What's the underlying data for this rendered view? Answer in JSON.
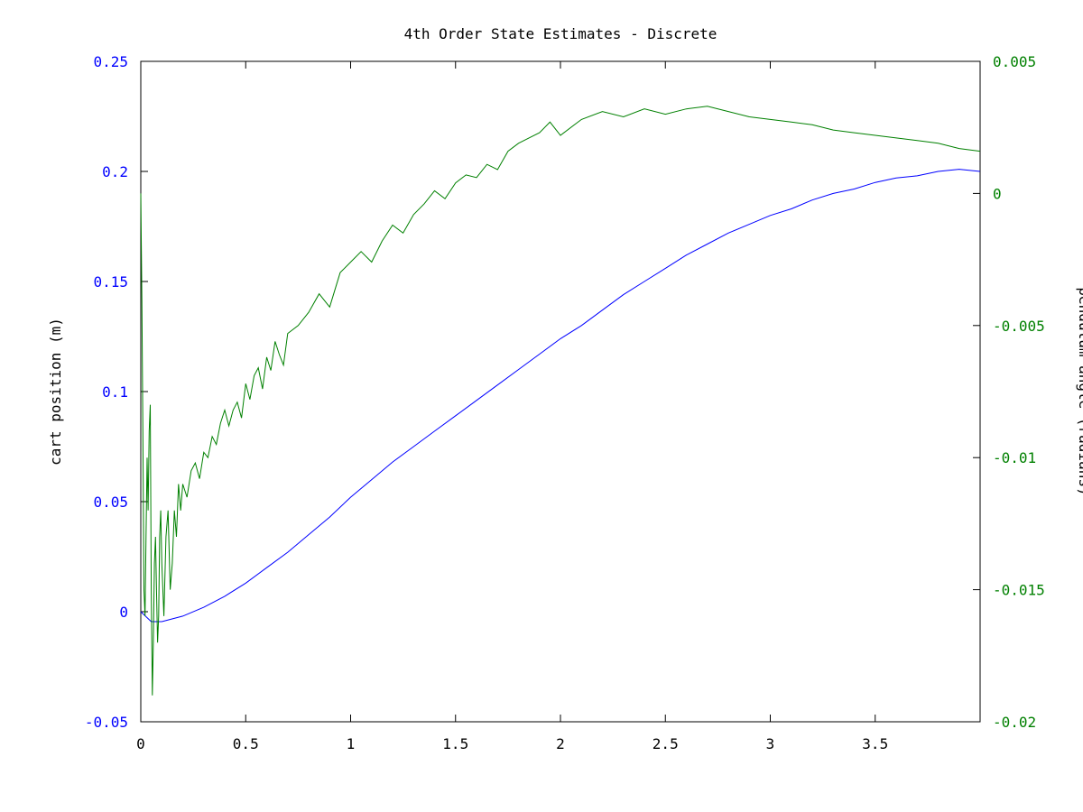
{
  "chart_data": {
    "type": "line",
    "title": "4th Order State Estimates - Discrete",
    "xlabel": "",
    "y1label": "cart position (m)",
    "y2label": "pendulum angle (radians)",
    "xlim": [
      0,
      4
    ],
    "y1lim": [
      -0.05,
      0.25
    ],
    "y2lim": [
      -0.02,
      0.005
    ],
    "grid": false,
    "x_ticks": [
      0,
      0.5,
      1,
      1.5,
      2,
      2.5,
      3,
      3.5
    ],
    "x_tick_labels": [
      "0",
      "0.5",
      "1",
      "1.5",
      "2",
      "2.5",
      "3",
      "3.5"
    ],
    "y1_ticks": [
      -0.05,
      0,
      0.05,
      0.1,
      0.15,
      0.2,
      0.25
    ],
    "y1_tick_labels": [
      "-0.05",
      "0",
      "0.05",
      "0.1",
      "0.15",
      "0.2",
      "0.25"
    ],
    "y2_ticks": [
      -0.02,
      -0.015,
      -0.01,
      -0.005,
      0,
      0.005
    ],
    "y2_tick_labels": [
      "-0.02",
      "-0.015",
      "-0.01",
      "-0.005",
      "0",
      "0.005"
    ],
    "colors": {
      "cart": "#0000ff",
      "pendulum": "#008000",
      "axis": "#000000"
    },
    "series": [
      {
        "axis": "y1",
        "color": "#0000ff",
        "x": [
          0,
          0.05,
          0.1,
          0.2,
          0.3,
          0.4,
          0.5,
          0.6,
          0.7,
          0.8,
          0.9,
          1.0,
          1.1,
          1.2,
          1.3,
          1.4,
          1.5,
          1.6,
          1.7,
          1.8,
          1.9,
          2.0,
          2.1,
          2.2,
          2.3,
          2.4,
          2.5,
          2.6,
          2.7,
          2.8,
          2.9,
          3.0,
          3.1,
          3.2,
          3.3,
          3.4,
          3.5,
          3.6,
          3.7,
          3.8,
          3.9,
          4.0
        ],
        "values": [
          0.0,
          -0.0045,
          -0.0045,
          -0.002,
          0.002,
          0.007,
          0.013,
          0.02,
          0.027,
          0.035,
          0.043,
          0.052,
          0.06,
          0.068,
          0.075,
          0.082,
          0.089,
          0.096,
          0.103,
          0.11,
          0.117,
          0.124,
          0.13,
          0.137,
          0.144,
          0.15,
          0.156,
          0.162,
          0.167,
          0.172,
          0.176,
          0.18,
          0.183,
          0.187,
          0.19,
          0.192,
          0.195,
          0.197,
          0.198,
          0.2,
          0.201,
          0.2
        ]
      },
      {
        "axis": "y2",
        "color": "#008000",
        "x": [
          0,
          0.005,
          0.01,
          0.015,
          0.02,
          0.025,
          0.03,
          0.035,
          0.04,
          0.045,
          0.05,
          0.055,
          0.06,
          0.065,
          0.07,
          0.075,
          0.08,
          0.085,
          0.09,
          0.095,
          0.1,
          0.11,
          0.12,
          0.13,
          0.14,
          0.15,
          0.16,
          0.17,
          0.18,
          0.19,
          0.2,
          0.22,
          0.24,
          0.26,
          0.28,
          0.3,
          0.32,
          0.34,
          0.36,
          0.38,
          0.4,
          0.42,
          0.44,
          0.46,
          0.48,
          0.5,
          0.52,
          0.54,
          0.56,
          0.58,
          0.6,
          0.62,
          0.64,
          0.66,
          0.68,
          0.7,
          0.75,
          0.8,
          0.85,
          0.9,
          0.95,
          1.0,
          1.05,
          1.1,
          1.15,
          1.2,
          1.25,
          1.3,
          1.35,
          1.4,
          1.45,
          1.5,
          1.55,
          1.6,
          1.65,
          1.7,
          1.75,
          1.8,
          1.85,
          1.9,
          1.95,
          2.0,
          2.1,
          2.2,
          2.3,
          2.4,
          2.5,
          2.6,
          2.7,
          2.8,
          2.9,
          3.0,
          3.1,
          3.2,
          3.3,
          3.4,
          3.5,
          3.6,
          3.7,
          3.8,
          3.9,
          4.0
        ],
        "values": [
          0.0,
          -0.004,
          -0.009,
          -0.015,
          -0.016,
          -0.013,
          -0.01,
          -0.012,
          -0.009,
          -0.008,
          -0.015,
          -0.019,
          -0.017,
          -0.014,
          -0.013,
          -0.015,
          -0.017,
          -0.016,
          -0.013,
          -0.012,
          -0.014,
          -0.016,
          -0.013,
          -0.012,
          -0.015,
          -0.014,
          -0.012,
          -0.013,
          -0.011,
          -0.012,
          -0.011,
          -0.0115,
          -0.0105,
          -0.0102,
          -0.0108,
          -0.0098,
          -0.01,
          -0.0092,
          -0.0095,
          -0.0087,
          -0.0082,
          -0.0088,
          -0.0082,
          -0.0079,
          -0.0085,
          -0.0072,
          -0.0078,
          -0.0069,
          -0.0066,
          -0.0074,
          -0.0062,
          -0.0067,
          -0.0056,
          -0.0061,
          -0.0065,
          -0.0053,
          -0.005,
          -0.0045,
          -0.0038,
          -0.0043,
          -0.003,
          -0.0026,
          -0.0022,
          -0.0026,
          -0.0018,
          -0.0012,
          -0.0015,
          -0.0008,
          -0.0004,
          0.0001,
          -0.0002,
          0.0004,
          0.0007,
          0.0006,
          0.0011,
          0.0009,
          0.0016,
          0.0019,
          0.0021,
          0.0023,
          0.0027,
          0.0022,
          0.0028,
          0.0031,
          0.0029,
          0.0032,
          0.003,
          0.0032,
          0.0033,
          0.0031,
          0.0029,
          0.0028,
          0.0027,
          0.0026,
          0.0024,
          0.0023,
          0.0022,
          0.0021,
          0.002,
          0.0019,
          0.0017,
          0.0016
        ]
      }
    ]
  }
}
